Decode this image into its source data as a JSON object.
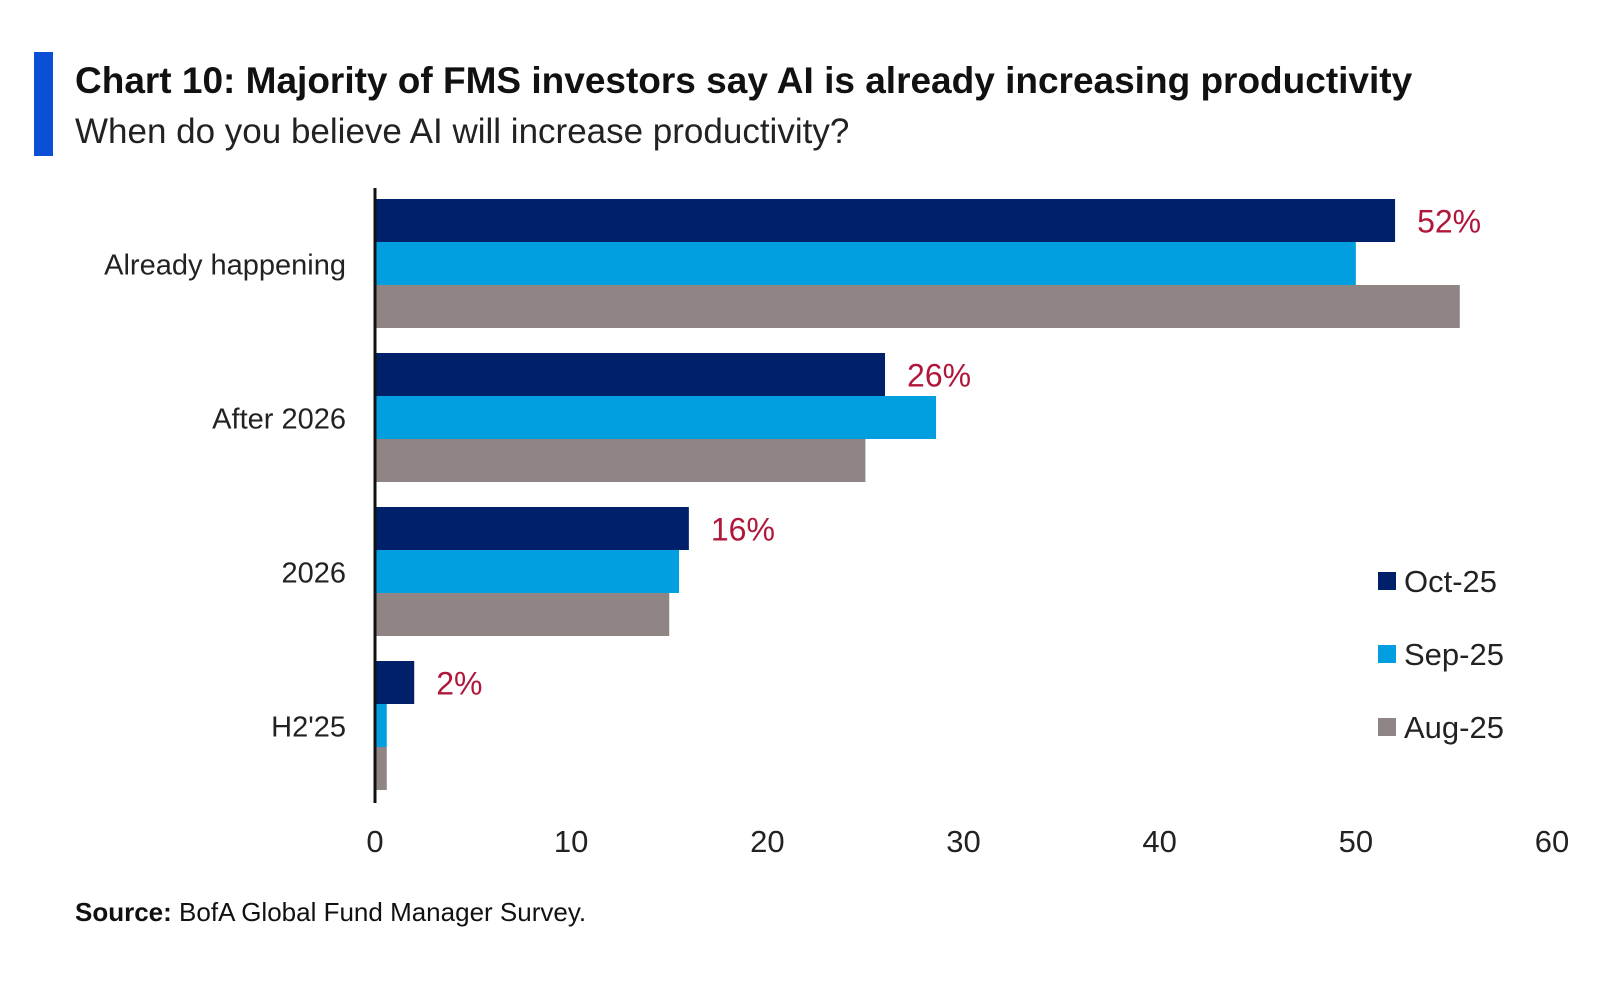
{
  "title": "Chart 10: Majority of FMS investors say AI is already increasing productivity",
  "subtitle": "When do you believe AI will increase productivity?",
  "source_label": "Source:",
  "source_text": "BofA Global Fund Manager Survey.",
  "colors": {
    "accent": "#0a4fd6",
    "label_red": "#b0173a",
    "text": "#222222"
  },
  "chart_data": {
    "type": "bar",
    "orientation": "horizontal",
    "categories": [
      "Already happening",
      "After 2026",
      "2026",
      "H2'25"
    ],
    "series": [
      {
        "name": "Oct-25",
        "color": "#00216a",
        "values": [
          52,
          26,
          16,
          2
        ]
      },
      {
        "name": "Sep-25",
        "color": "#029fe0",
        "values": [
          50,
          28.6,
          15.5,
          0.6
        ]
      },
      {
        "name": "Aug-25",
        "color": "#8f8585",
        "values": [
          55.3,
          25,
          15,
          0.6
        ]
      }
    ],
    "data_labels": [
      "52%",
      "26%",
      "16%",
      "2%"
    ],
    "xlim": [
      0,
      60
    ],
    "xticks": [
      0,
      10,
      20,
      30,
      40,
      50,
      60
    ],
    "grid": false,
    "legend": "right"
  }
}
